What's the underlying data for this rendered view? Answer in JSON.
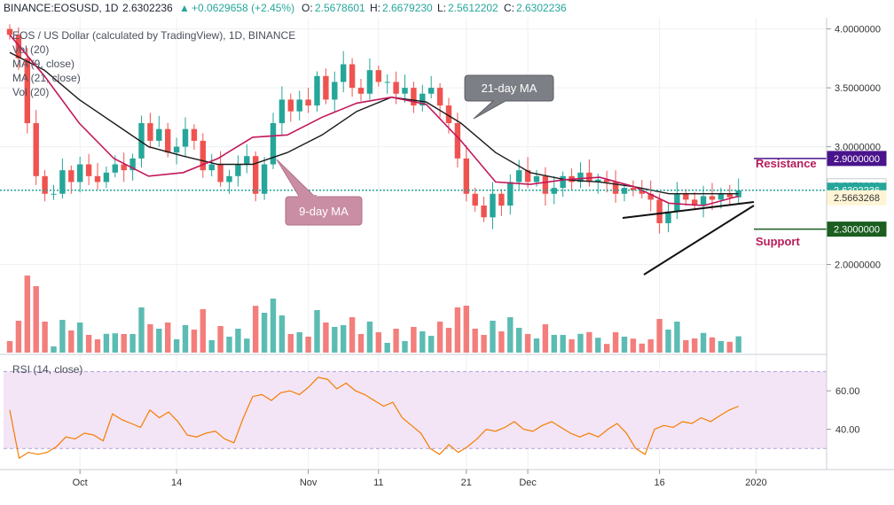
{
  "header": {
    "symbol": "BINANCE:EOSUSD, 1D",
    "last": "2.6302236",
    "change": "+0.0629658 (+2.45%)",
    "o_label": "O:",
    "o": "2.5678601",
    "h_label": "H:",
    "h": "2.6679230",
    "l_label": "L:",
    "l": "2.5612202",
    "c_label": "C:",
    "c": "2.6302236"
  },
  "legend": {
    "title": "EOS / US Dollar (calculated by TradingView), 1D, BINANCE",
    "studies": [
      "Vol (20)",
      "MA (9, close)",
      "MA (21, close)",
      "Vol (20)"
    ]
  },
  "annotations": {
    "ma21": "21-day MA",
    "ma9": "9-day MA",
    "resistance": "Resistance",
    "support": "Support"
  },
  "price_axis": {
    "ticks": [
      "4.0000000",
      "3.5000000",
      "3.0000000",
      "2.0000000"
    ],
    "tick_values": [
      4.0,
      3.5,
      3.0,
      2.0
    ],
    "badges": [
      {
        "text": "2.9000000",
        "value": 2.9,
        "color": "#4a148c",
        "fg": "#ffffff"
      },
      {
        "text": "2.6679083",
        "value": 2.6679,
        "color": "#ffffff",
        "fg": "#333333"
      },
      {
        "text": "2.6302236",
        "value": 2.6302,
        "color": "#26a69a",
        "fg": "#ffffff"
      },
      {
        "text": "2.5663268",
        "value": 2.5663,
        "color": "#fff5d6",
        "fg": "#333333"
      },
      {
        "text": "2.3000000",
        "value": 2.3,
        "color": "#1b5e20",
        "fg": "#ffffff"
      }
    ]
  },
  "rsi": {
    "title": "RSI (14, close)",
    "ticks": [
      "60.00",
      "40.00"
    ],
    "tick_values": [
      60,
      40
    ],
    "upper": 70,
    "lower": 30
  },
  "x_axis": {
    "labels": [
      {
        "text": "Oct",
        "index": 8
      },
      {
        "text": "14",
        "index": 19
      },
      {
        "text": "Nov",
        "index": 34
      },
      {
        "text": "11",
        "index": 42
      },
      {
        "text": "21",
        "index": 52
      },
      {
        "text": "Dec",
        "index": 59
      },
      {
        "text": "16",
        "index": 74
      },
      {
        "text": "2020",
        "index": 85
      }
    ]
  },
  "colors": {
    "up": "#26a69a",
    "down": "#ef5350",
    "ma9": "#c2185b",
    "ma21": "#1a1a1a",
    "rsi": "#f57c00",
    "rsi_band": "#f3e5f5",
    "resistance": "#4a148c",
    "support": "#1b5e20"
  },
  "chart_data": {
    "type": "candlestick",
    "title": "EOS / US Dollar (calculated by TradingView), 1D, BINANCE",
    "ylim": [
      1.65,
      4.02
    ],
    "close": [
      3.95,
      3.75,
      3.2,
      2.75,
      2.6,
      2.6,
      2.8,
      2.7,
      2.85,
      2.75,
      2.7,
      2.78,
      2.85,
      2.8,
      2.9,
      3.2,
      3.05,
      3.15,
      2.95,
      3.0,
      3.15,
      3.05,
      2.8,
      2.85,
      2.7,
      2.75,
      2.85,
      2.92,
      2.6,
      2.85,
      3.2,
      3.4,
      3.3,
      3.4,
      3.35,
      3.6,
      3.4,
      3.55,
      3.7,
      3.5,
      3.45,
      3.65,
      3.55,
      3.55,
      3.45,
      3.5,
      3.35,
      3.45,
      3.5,
      3.35,
      3.2,
      2.9,
      2.6,
      2.5,
      2.4,
      2.6,
      2.5,
      2.7,
      2.8,
      2.7,
      2.75,
      2.6,
      2.65,
      2.75,
      2.7,
      2.78,
      2.7,
      2.72,
      2.7,
      2.6,
      2.65,
      2.63,
      2.6,
      2.55,
      2.35,
      2.45,
      2.6,
      2.55,
      2.5,
      2.58,
      2.55,
      2.6,
      2.57,
      2.63
    ],
    "ma9_sample": [
      3.95,
      3.6,
      3.2,
      2.9,
      2.75,
      2.78,
      2.9,
      3.08,
      3.1,
      3.25,
      3.37,
      3.42,
      3.36,
      3.05,
      2.7,
      2.68,
      2.72,
      2.74,
      2.66,
      2.52,
      2.5,
      2.58
    ],
    "ma21_sample": [
      3.8,
      3.65,
      3.4,
      3.2,
      3.0,
      2.92,
      2.85,
      2.85,
      2.95,
      3.1,
      3.3,
      3.42,
      3.38,
      3.2,
      2.95,
      2.78,
      2.72,
      2.7,
      2.66,
      2.6,
      2.6,
      2.6
    ],
    "resistance": 2.9,
    "support": 2.3,
    "rsi_close": [
      50,
      25,
      28,
      27,
      28,
      31,
      36,
      35,
      38,
      37,
      34,
      48,
      45,
      43,
      41,
      50,
      46,
      49,
      44,
      37,
      36,
      38,
      39,
      35,
      33,
      46,
      57,
      58,
      55,
      59,
      60,
      58,
      62,
      67,
      66,
      61,
      64,
      60,
      58,
      55,
      52,
      54,
      46,
      42,
      38,
      30,
      27,
      32,
      28,
      31,
      35,
      40,
      39,
      41,
      44,
      40,
      39,
      42,
      44,
      41,
      38,
      36,
      38,
      36,
      40,
      43,
      38,
      30,
      27,
      40,
      42,
      41,
      44,
      43,
      46,
      44,
      47,
      50,
      52
    ]
  }
}
